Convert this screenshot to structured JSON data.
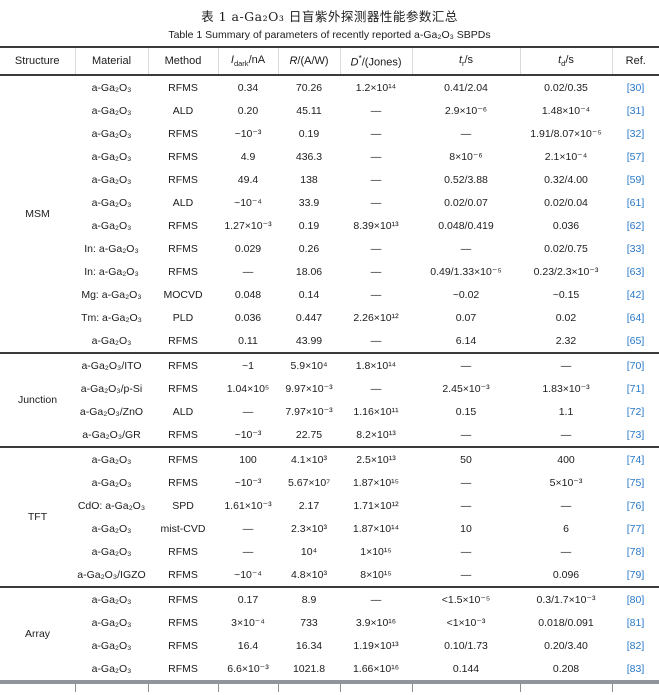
{
  "title_cn": "表 1  a-Ga₂O₃ 日盲紫外探测器性能参数汇总",
  "title_en": "Table 1  Summary of parameters of recently reported a-Ga₂O₃ SBPDs",
  "columns": [
    {
      "label": "Structure"
    },
    {
      "label": "Material"
    },
    {
      "label": "Method"
    },
    {
      "it": "I",
      "sub": "dark",
      "post": "/nA"
    },
    {
      "it": "R",
      "post": "/(A/W)"
    },
    {
      "it": "D",
      "sup": "*",
      "post": "/(Jones)"
    },
    {
      "it": "t",
      "sub": "r",
      "post": "/s"
    },
    {
      "it": "t",
      "sub": "d",
      "post": "/s"
    },
    {
      "label": "Ref."
    }
  ],
  "ref_color": "#2878c8",
  "groups": [
    {
      "structure": "MSM",
      "rows": [
        [
          "a-Ga₂O₃",
          "RFMS",
          "0.34",
          "70.26",
          "1.2×10¹⁴",
          "0.41/2.04",
          "0.02/0.35",
          "[30]"
        ],
        [
          "a-Ga₂O₃",
          "ALD",
          "0.20",
          "45.11",
          "—",
          "2.9×10⁻⁶",
          "1.48×10⁻⁴",
          "[31]"
        ],
        [
          "a-Ga₂O₃",
          "RFMS",
          "~10⁻³",
          "0.19",
          "—",
          "—",
          "1.91/8.07×10⁻⁵",
          "[32]"
        ],
        [
          "a-Ga₂O₃",
          "RFMS",
          "4.9",
          "436.3",
          "—",
          "8×10⁻⁶",
          "2.1×10⁻⁴",
          "[57]"
        ],
        [
          "a-Ga₂O₃",
          "RFMS",
          "49.4",
          "138",
          "—",
          "0.52/3.88",
          "0.32/4.00",
          "[59]"
        ],
        [
          "a-Ga₂O₃",
          "ALD",
          "~10⁻⁴",
          "33.9",
          "—",
          "0.02/0.07",
          "0.02/0.04",
          "[61]"
        ],
        [
          "a-Ga₂O₃",
          "RFMS",
          "1.27×10⁻³",
          "0.19",
          "8.39×10¹³",
          "0.048/0.419",
          "0.036",
          "[62]"
        ],
        [
          "In: a-Ga₂O₃",
          "RFMS",
          "0.029",
          "0.26",
          "—",
          "—",
          "0.02/0.75",
          "[33]"
        ],
        [
          "In: a-Ga₂O₃",
          "RFMS",
          "—",
          "18.06",
          "—",
          "0.49/1.33×10⁻⁵",
          "0.23/2.3×10⁻³",
          "[63]"
        ],
        [
          "Mg: a-Ga₂O₃",
          "MOCVD",
          "0.048",
          "0.14",
          "—",
          "~0.02",
          "~0.15",
          "[42]"
        ],
        [
          "Tm: a-Ga₂O₃",
          "PLD",
          "0.036",
          "0.447",
          "2.26×10¹²",
          "0.07",
          "0.02",
          "[64]"
        ],
        [
          "a-Ga₂O₃",
          "RFMS",
          "0.11",
          "43.99",
          "—",
          "6.14",
          "2.32",
          "[65]"
        ]
      ]
    },
    {
      "structure": "Junction",
      "rows": [
        [
          "a-Ga₂O₃/ITO",
          "RFMS",
          "~1",
          "5.9×10⁴",
          "1.8×10¹⁴",
          "—",
          "—",
          "[70]"
        ],
        [
          "a-Ga₂O₃/p-Si",
          "RFMS",
          "1.04×10⁵",
          "9.97×10⁻³",
          "—",
          "2.45×10⁻³",
          "1.83×10⁻³",
          "[71]"
        ],
        [
          "a-Ga₂O₃/ZnO",
          "ALD",
          "—",
          "7.97×10⁻³",
          "1.16×10¹¹",
          "0.15",
          "1.1",
          "[72]"
        ],
        [
          "a-Ga₂O₃/GR",
          "RFMS",
          "~10⁻³",
          "22.75",
          "8.2×10¹³",
          "—",
          "—",
          "[73]"
        ]
      ]
    },
    {
      "structure": "TFT",
      "rows": [
        [
          "a-Ga₂O₃",
          "RFMS",
          "100",
          "4.1×10³",
          "2.5×10¹³",
          "50",
          "400",
          "[74]"
        ],
        [
          "a-Ga₂O₃",
          "RFMS",
          "~10⁻³",
          "5.67×10⁷",
          "1.87×10¹⁵",
          "—",
          "5×10⁻³",
          "[75]"
        ],
        [
          "CdO: a-Ga₂O₃",
          "SPD",
          "1.61×10⁻³",
          "2.17",
          "1.71×10¹²",
          "—",
          "—",
          "[76]"
        ],
        [
          "a-Ga₂O₃",
          "mist-CVD",
          "—",
          "2.3×10³",
          "1.87×10¹⁴",
          "10",
          "6",
          "[77]"
        ],
        [
          "a-Ga₂O₃",
          "RFMS",
          "—",
          "10⁴",
          "1×10¹⁵",
          "—",
          "—",
          "[78]"
        ],
        [
          "a-Ga₂O₃/IGZO",
          "RFMS",
          "~10⁻⁴",
          "4.8×10³",
          "8×10¹⁵",
          "—",
          "0.096",
          "[79]"
        ]
      ]
    },
    {
      "structure": "Array",
      "rows": [
        [
          "a-Ga₂O₃",
          "RFMS",
          "0.17",
          "8.9",
          "—",
          "<1.5×10⁻⁵",
          "0.3/1.7×10⁻³",
          "[80]"
        ],
        [
          "a-Ga₂O₃",
          "RFMS",
          "3×10⁻⁴",
          "733",
          "3.9×10¹⁶",
          "<1×10⁻³",
          "0.018/0.091",
          "[81]"
        ],
        [
          "a-Ga₂O₃",
          "RFMS",
          "16.4",
          "16.34",
          "1.19×10¹³",
          "0.10/1.73",
          "0.20/3.40",
          "[82]"
        ],
        [
          "a-Ga₂O₃",
          "RFMS",
          "6.6×10⁻³",
          "1021.8",
          "1.66×10¹⁶",
          "0.144",
          "0.208",
          "[83]"
        ]
      ]
    }
  ]
}
